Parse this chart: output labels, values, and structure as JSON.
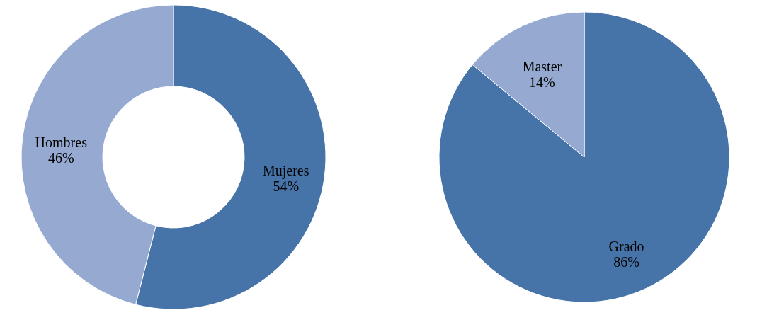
{
  "chart_data": [
    {
      "type": "donut",
      "categories": [
        "Mujeres",
        "Hombres"
      ],
      "values": [
        54,
        46
      ],
      "value_labels": [
        "54%",
        "46%"
      ],
      "colors": [
        "#4674a8",
        "#95a9d1"
      ],
      "legend": false
    },
    {
      "type": "pie",
      "categories": [
        "Grado",
        "Master"
      ],
      "values": [
        86,
        14
      ],
      "value_labels": [
        "86%",
        "14%"
      ],
      "colors": [
        "#4674a8",
        "#95a9d1"
      ],
      "legend": false
    }
  ]
}
